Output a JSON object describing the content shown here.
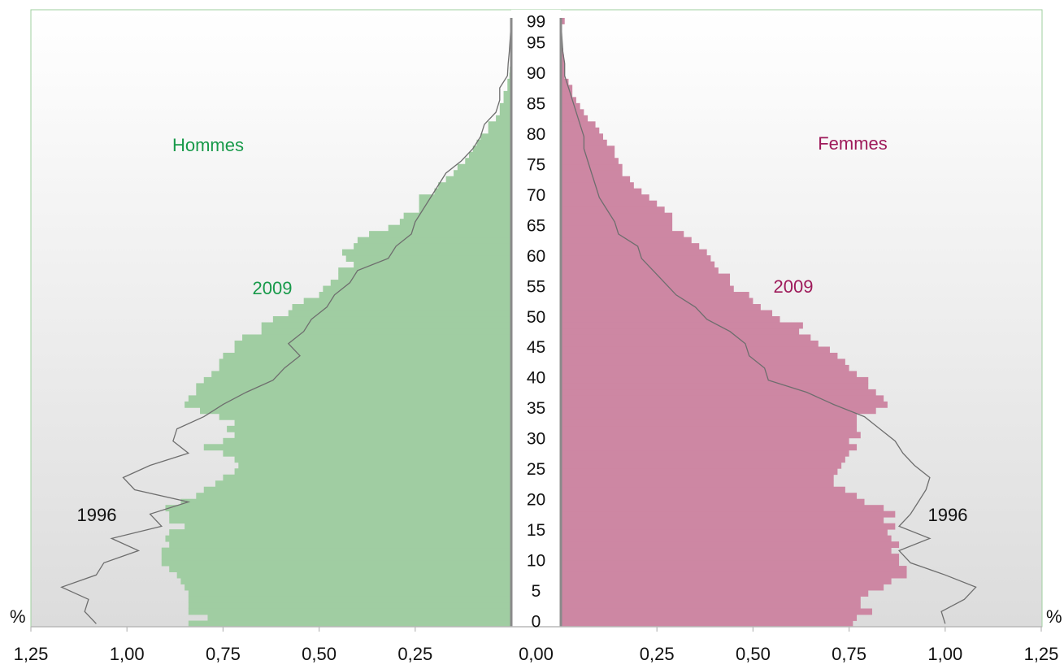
{
  "chart_data": {
    "type": "bar",
    "subtype": "population-pyramid",
    "x_unit": "%",
    "xlim": [
      0,
      1.25
    ],
    "x_ticks": [
      "1,25",
      "1,00",
      "0,75",
      "0,50",
      "0,25",
      "0,00",
      "0,25",
      "0,50",
      "0,75",
      "1,00",
      "1,25"
    ],
    "age_ticks": [
      0,
      5,
      10,
      15,
      20,
      25,
      30,
      35,
      40,
      45,
      50,
      55,
      60,
      65,
      70,
      75,
      80,
      85,
      90,
      95,
      99
    ],
    "age_range": [
      0,
      99
    ],
    "grid": false,
    "sides": {
      "left": {
        "label": "Hommes",
        "color": "#189a4a",
        "bar_color": "#a0cda2"
      },
      "right": {
        "label": "Femmes",
        "color": "#9e1a5a",
        "bar_color": "#cd87a3"
      }
    },
    "series_labels": {
      "bars_left": "2009",
      "bars_right": "2009",
      "line_left": "1996",
      "line_right": "1996"
    },
    "bars_2009": {
      "ages": [
        0,
        1,
        2,
        3,
        4,
        5,
        6,
        7,
        8,
        9,
        10,
        11,
        12,
        13,
        14,
        15,
        16,
        17,
        18,
        19,
        20,
        21,
        22,
        23,
        24,
        25,
        26,
        27,
        28,
        29,
        30,
        31,
        32,
        33,
        34,
        35,
        36,
        37,
        38,
        39,
        40,
        41,
        42,
        43,
        44,
        45,
        46,
        47,
        48,
        49,
        50,
        51,
        52,
        53,
        54,
        55,
        56,
        57,
        58,
        59,
        60,
        61,
        62,
        63,
        64,
        65,
        66,
        67,
        68,
        69,
        70,
        71,
        72,
        73,
        74,
        75,
        76,
        77,
        78,
        79,
        80,
        81,
        82,
        83,
        84,
        85,
        86,
        87,
        88,
        89,
        90,
        91,
        92,
        93,
        94,
        95,
        96,
        97,
        98,
        99
      ],
      "men": [
        0.84,
        0.79,
        0.84,
        0.84,
        0.84,
        0.84,
        0.85,
        0.86,
        0.87,
        0.89,
        0.91,
        0.91,
        0.91,
        0.89,
        0.9,
        0.89,
        0.85,
        0.89,
        0.89,
        0.9,
        0.86,
        0.82,
        0.8,
        0.77,
        0.75,
        0.72,
        0.71,
        0.72,
        0.75,
        0.8,
        0.75,
        0.72,
        0.74,
        0.72,
        0.76,
        0.81,
        0.85,
        0.84,
        0.82,
        0.82,
        0.8,
        0.78,
        0.76,
        0.76,
        0.75,
        0.72,
        0.72,
        0.7,
        0.65,
        0.65,
        0.62,
        0.58,
        0.57,
        0.54,
        0.5,
        0.49,
        0.47,
        0.45,
        0.45,
        0.41,
        0.43,
        0.44,
        0.41,
        0.4,
        0.37,
        0.32,
        0.29,
        0.28,
        0.24,
        0.24,
        0.24,
        0.2,
        0.19,
        0.17,
        0.15,
        0.14,
        0.12,
        0.11,
        0.1,
        0.09,
        0.08,
        0.06,
        0.06,
        0.04,
        0.03,
        0.03,
        0.02,
        0.02,
        0.01,
        0.01,
        0.005,
        0.004,
        0.003,
        0.002,
        0.002,
        0.002,
        0.001,
        0.001,
        0.001,
        0.001
      ],
      "women": [
        0.76,
        0.77,
        0.81,
        0.78,
        0.78,
        0.8,
        0.84,
        0.86,
        0.9,
        0.9,
        0.88,
        0.88,
        0.86,
        0.88,
        0.86,
        0.85,
        0.87,
        0.84,
        0.87,
        0.84,
        0.79,
        0.77,
        0.74,
        0.71,
        0.71,
        0.72,
        0.73,
        0.74,
        0.75,
        0.77,
        0.75,
        0.78,
        0.77,
        0.77,
        0.77,
        0.82,
        0.85,
        0.84,
        0.82,
        0.8,
        0.8,
        0.77,
        0.75,
        0.74,
        0.72,
        0.7,
        0.67,
        0.65,
        0.62,
        0.63,
        0.57,
        0.55,
        0.52,
        0.5,
        0.49,
        0.45,
        0.44,
        0.44,
        0.41,
        0.4,
        0.39,
        0.38,
        0.36,
        0.34,
        0.32,
        0.29,
        0.29,
        0.29,
        0.27,
        0.25,
        0.23,
        0.21,
        0.19,
        0.18,
        0.16,
        0.16,
        0.15,
        0.14,
        0.14,
        0.12,
        0.11,
        0.1,
        0.09,
        0.07,
        0.06,
        0.05,
        0.04,
        0.03,
        0.03,
        0.02,
        0.01,
        0.01,
        0.01,
        0.008,
        0.006,
        0.004,
        0.003,
        0.003,
        0.002,
        0.01
      ]
    },
    "line_1996": {
      "ages": [
        0,
        2,
        4,
        6,
        8,
        10,
        12,
        14,
        16,
        18,
        20,
        22,
        24,
        26,
        28,
        30,
        32,
        34,
        36,
        38,
        40,
        42,
        44,
        46,
        48,
        50,
        52,
        54,
        56,
        58,
        60,
        62,
        64,
        66,
        68,
        70,
        72,
        74,
        76,
        78,
        80,
        82,
        84,
        86,
        88,
        90,
        92,
        94,
        96,
        98,
        99
      ],
      "men": [
        1.08,
        1.11,
        1.1,
        1.17,
        1.08,
        1.06,
        0.97,
        1.04,
        0.91,
        0.94,
        0.84,
        0.98,
        1.01,
        0.94,
        0.84,
        0.88,
        0.87,
        0.8,
        0.75,
        0.69,
        0.62,
        0.59,
        0.55,
        0.58,
        0.54,
        0.52,
        0.48,
        0.46,
        0.42,
        0.4,
        0.32,
        0.3,
        0.26,
        0.25,
        0.23,
        0.21,
        0.19,
        0.17,
        0.13,
        0.1,
        0.08,
        0.07,
        0.04,
        0.03,
        0.03,
        0.01,
        0.008,
        0.005,
        0.003,
        0.001,
        0.0
      ],
      "women": [
        1.0,
        0.99,
        1.05,
        1.08,
        1.0,
        0.91,
        0.88,
        0.96,
        0.88,
        0.91,
        0.93,
        0.95,
        0.96,
        0.92,
        0.89,
        0.87,
        0.83,
        0.79,
        0.71,
        0.64,
        0.54,
        0.53,
        0.49,
        0.48,
        0.44,
        0.38,
        0.35,
        0.3,
        0.27,
        0.24,
        0.21,
        0.2,
        0.15,
        0.14,
        0.12,
        0.1,
        0.09,
        0.08,
        0.07,
        0.06,
        0.06,
        0.05,
        0.04,
        0.03,
        0.02,
        0.01,
        0.01,
        0.005,
        0.003,
        0.001,
        0.0
      ]
    }
  }
}
